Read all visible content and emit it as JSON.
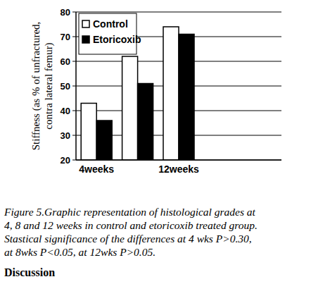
{
  "chart_data": {
    "type": "bar",
    "y_label": [
      "Stiffness (as % of unfractured,",
      "contra lateral femur)"
    ],
    "categories": [
      "4weeks",
      null,
      "12weeks",
      null,
      null
    ],
    "series": [
      {
        "name": "Control",
        "color": "#ffffff",
        "values": [
          43,
          62,
          74,
          null,
          null
        ]
      },
      {
        "name": "Etoricoxib",
        "color": "#000000",
        "values": [
          36,
          51,
          71,
          null,
          null
        ]
      }
    ],
    "ylim": [
      20,
      80
    ],
    "yticks": [
      20,
      30,
      40,
      50,
      60,
      70,
      80
    ],
    "grid": true,
    "legend": "top-left"
  },
  "caption": [
    "Figure 5.Graphic representation of histological grades at",
    "4, 8 and 12 weeks in control and etoricoxib treated group.",
    "Stastical significance of the differences at 4 wks P>0.30,",
    "at 8wks P<0.05, at 12wks P>0.05."
  ],
  "section_heading": "Discussion"
}
